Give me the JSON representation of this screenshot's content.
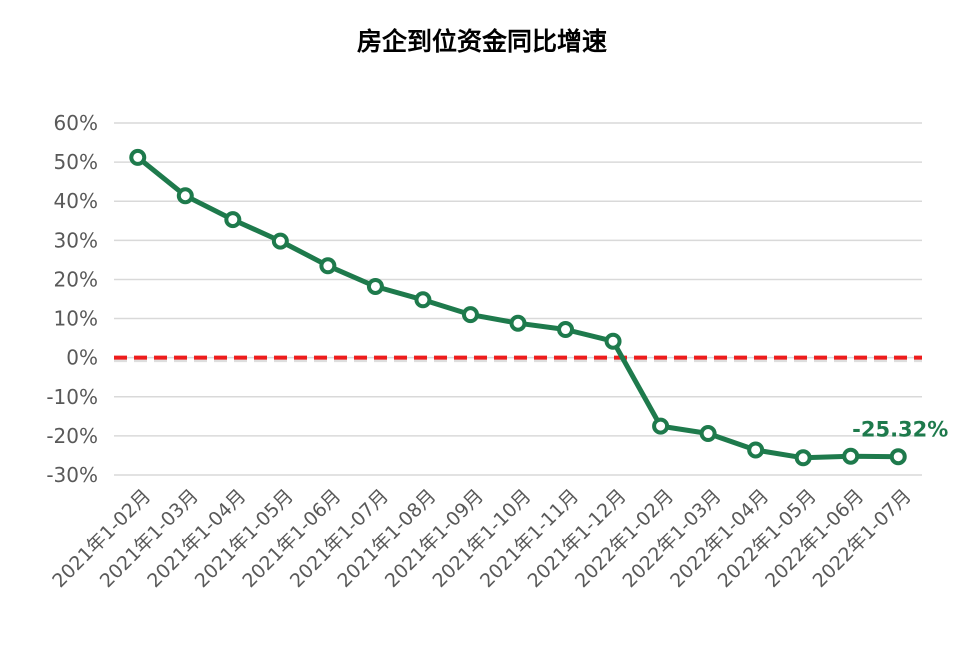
{
  "chart_data": {
    "type": "line",
    "title": "房企到位资金同比增速",
    "xlabel": "",
    "ylabel": "",
    "categories": [
      "2021年1-02月",
      "2021年1-03月",
      "2021年1-04月",
      "2021年1-05月",
      "2021年1-06月",
      "2021年1-07月",
      "2021年1-08月",
      "2021年1-09月",
      "2021年1-10月",
      "2021年1-11月",
      "2021年1-12月",
      "2022年1-02月",
      "2022年1-03月",
      "2022年1-04月",
      "2022年1-05月",
      "2022年1-06月",
      "2022年1-07月"
    ],
    "series": [
      {
        "color": "#1e7a4c",
        "values": [
          51.2,
          41.4,
          35.3,
          29.8,
          23.5,
          18.2,
          14.8,
          11.0,
          8.8,
          7.2,
          4.2,
          -17.5,
          -19.4,
          -23.6,
          -25.6,
          -25.2,
          -25.32
        ]
      }
    ],
    "reference_line": {
      "value": 0,
      "style": "dashed",
      "color": "#ee1c1c"
    },
    "ylim": [
      -30,
      60
    ],
    "ytick_step": 10,
    "ytick_labels": [
      "60%",
      "50%",
      "40%",
      "30%",
      "20%",
      "10%",
      "0%",
      "-10%",
      "-20%",
      "-30%"
    ],
    "grid": true,
    "gridline_color": "#d9d9d9",
    "annotation": {
      "text": "-25.32%",
      "point_index": 16,
      "color": "#1e7a4c"
    }
  }
}
